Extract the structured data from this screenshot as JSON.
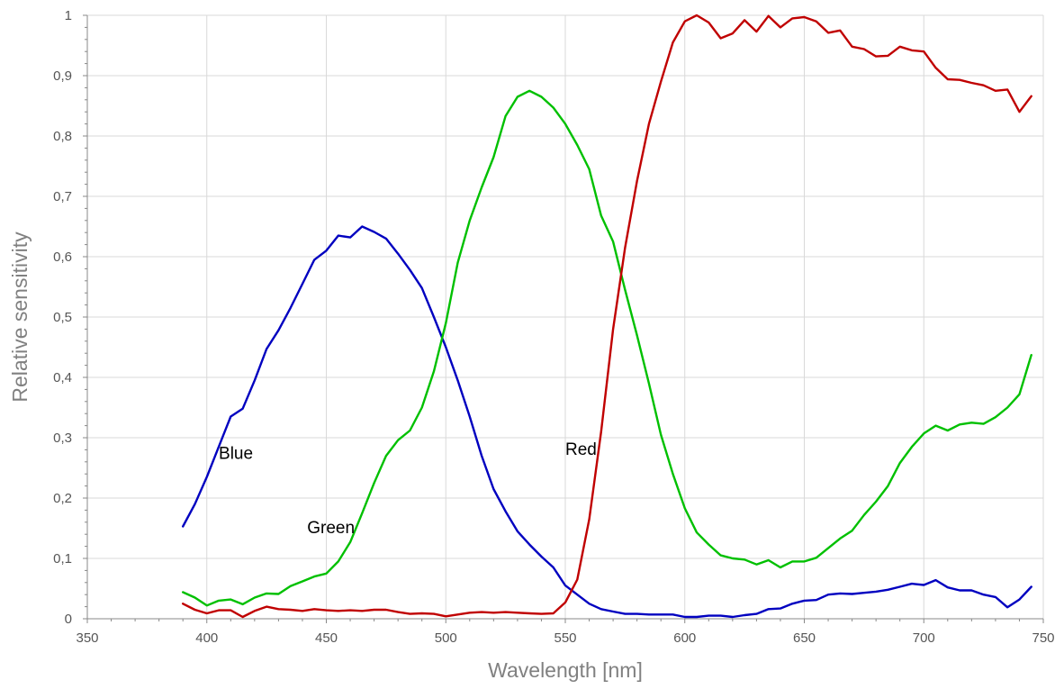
{
  "chart_data": {
    "type": "line",
    "title": "",
    "xlabel": "Wavelength [nm]",
    "ylabel": "Relative sensitivity",
    "xlim": [
      350,
      750
    ],
    "ylim": [
      0,
      1
    ],
    "x_ticks": [
      350,
      400,
      450,
      500,
      550,
      600,
      650,
      700,
      750
    ],
    "x_tick_labels": [
      "350",
      "400",
      "450",
      "500",
      "550",
      "600",
      "650",
      "700",
      "750"
    ],
    "y_ticks": [
      0,
      0.1,
      0.2,
      0.3,
      0.4,
      0.5,
      0.6,
      0.7,
      0.8,
      0.9,
      1
    ],
    "y_tick_labels": [
      "0",
      "0,1",
      "0,2",
      "0,3",
      "0,4",
      "0,5",
      "0,6",
      "0,7",
      "0,8",
      "0,9",
      "1"
    ],
    "grid": true,
    "legend": "none (inline labels)",
    "series": [
      {
        "name": "Blue",
        "color": "#0000c0",
        "label_at": [
          405,
          0.265
        ],
        "points": [
          [
            390,
            0.153
          ],
          [
            395,
            0.19
          ],
          [
            400,
            0.235
          ],
          [
            405,
            0.285
          ],
          [
            410,
            0.335
          ],
          [
            415,
            0.348
          ],
          [
            420,
            0.395
          ],
          [
            425,
            0.447
          ],
          [
            430,
            0.478
          ],
          [
            435,
            0.515
          ],
          [
            440,
            0.555
          ],
          [
            445,
            0.595
          ],
          [
            450,
            0.61
          ],
          [
            455,
            0.635
          ],
          [
            460,
            0.632
          ],
          [
            465,
            0.65
          ],
          [
            470,
            0.641
          ],
          [
            475,
            0.63
          ],
          [
            480,
            0.605
          ],
          [
            485,
            0.578
          ],
          [
            490,
            0.548
          ],
          [
            495,
            0.5
          ],
          [
            500,
            0.45
          ],
          [
            505,
            0.395
          ],
          [
            510,
            0.335
          ],
          [
            515,
            0.27
          ],
          [
            520,
            0.215
          ],
          [
            525,
            0.178
          ],
          [
            530,
            0.145
          ],
          [
            535,
            0.123
          ],
          [
            540,
            0.103
          ],
          [
            545,
            0.085
          ],
          [
            550,
            0.055
          ],
          [
            555,
            0.04
          ],
          [
            560,
            0.025
          ],
          [
            565,
            0.016
          ],
          [
            570,
            0.012
          ],
          [
            575,
            0.008
          ],
          [
            580,
            0.008
          ],
          [
            585,
            0.007
          ],
          [
            590,
            0.007
          ],
          [
            595,
            0.007
          ],
          [
            600,
            0.003
          ],
          [
            605,
            0.003
          ],
          [
            610,
            0.005
          ],
          [
            615,
            0.005
          ],
          [
            620,
            0.003
          ],
          [
            625,
            0.006
          ],
          [
            630,
            0.008
          ],
          [
            635,
            0.016
          ],
          [
            640,
            0.017
          ],
          [
            645,
            0.025
          ],
          [
            650,
            0.03
          ],
          [
            655,
            0.031
          ],
          [
            660,
            0.04
          ],
          [
            665,
            0.042
          ],
          [
            670,
            0.041
          ],
          [
            675,
            0.043
          ],
          [
            680,
            0.045
          ],
          [
            685,
            0.048
          ],
          [
            690,
            0.053
          ],
          [
            695,
            0.058
          ],
          [
            700,
            0.056
          ],
          [
            705,
            0.064
          ],
          [
            710,
            0.052
          ],
          [
            715,
            0.047
          ],
          [
            720,
            0.047
          ],
          [
            725,
            0.04
          ],
          [
            730,
            0.036
          ],
          [
            735,
            0.019
          ],
          [
            740,
            0.032
          ],
          [
            745,
            0.053
          ]
        ]
      },
      {
        "name": "Green",
        "color": "#00c000",
        "label_at": [
          442,
          0.142
        ],
        "points": [
          [
            390,
            0.044
          ],
          [
            395,
            0.035
          ],
          [
            400,
            0.022
          ],
          [
            405,
            0.03
          ],
          [
            410,
            0.032
          ],
          [
            415,
            0.024
          ],
          [
            420,
            0.035
          ],
          [
            425,
            0.042
          ],
          [
            430,
            0.041
          ],
          [
            435,
            0.054
          ],
          [
            440,
            0.062
          ],
          [
            445,
            0.07
          ],
          [
            450,
            0.075
          ],
          [
            455,
            0.095
          ],
          [
            460,
            0.127
          ],
          [
            465,
            0.175
          ],
          [
            470,
            0.225
          ],
          [
            475,
            0.27
          ],
          [
            480,
            0.296
          ],
          [
            485,
            0.312
          ],
          [
            490,
            0.35
          ],
          [
            495,
            0.41
          ],
          [
            500,
            0.49
          ],
          [
            505,
            0.59
          ],
          [
            510,
            0.66
          ],
          [
            515,
            0.715
          ],
          [
            520,
            0.765
          ],
          [
            525,
            0.833
          ],
          [
            530,
            0.865
          ],
          [
            535,
            0.875
          ],
          [
            540,
            0.865
          ],
          [
            545,
            0.847
          ],
          [
            550,
            0.82
          ],
          [
            555,
            0.785
          ],
          [
            560,
            0.745
          ],
          [
            565,
            0.668
          ],
          [
            570,
            0.625
          ],
          [
            575,
            0.545
          ],
          [
            580,
            0.47
          ],
          [
            585,
            0.39
          ],
          [
            590,
            0.305
          ],
          [
            595,
            0.24
          ],
          [
            600,
            0.183
          ],
          [
            605,
            0.143
          ],
          [
            610,
            0.123
          ],
          [
            615,
            0.105
          ],
          [
            620,
            0.1
          ],
          [
            625,
            0.098
          ],
          [
            630,
            0.09
          ],
          [
            635,
            0.097
          ],
          [
            640,
            0.085
          ],
          [
            645,
            0.095
          ],
          [
            650,
            0.095
          ],
          [
            655,
            0.101
          ],
          [
            660,
            0.117
          ],
          [
            665,
            0.133
          ],
          [
            670,
            0.146
          ],
          [
            675,
            0.172
          ],
          [
            680,
            0.194
          ],
          [
            685,
            0.22
          ],
          [
            690,
            0.258
          ],
          [
            695,
            0.285
          ],
          [
            700,
            0.307
          ],
          [
            705,
            0.32
          ],
          [
            710,
            0.312
          ],
          [
            715,
            0.322
          ],
          [
            720,
            0.325
          ],
          [
            725,
            0.323
          ],
          [
            730,
            0.334
          ],
          [
            735,
            0.35
          ],
          [
            740,
            0.372
          ],
          [
            745,
            0.437
          ]
        ]
      },
      {
        "name": "Red",
        "color": "#c00000",
        "label_at": [
          550,
          0.272
        ],
        "points": [
          [
            390,
            0.025
          ],
          [
            395,
            0.015
          ],
          [
            400,
            0.009
          ],
          [
            405,
            0.014
          ],
          [
            410,
            0.014
          ],
          [
            415,
            0.003
          ],
          [
            420,
            0.013
          ],
          [
            425,
            0.02
          ],
          [
            430,
            0.016
          ],
          [
            435,
            0.015
          ],
          [
            440,
            0.013
          ],
          [
            445,
            0.016
          ],
          [
            450,
            0.014
          ],
          [
            455,
            0.013
          ],
          [
            460,
            0.014
          ],
          [
            465,
            0.013
          ],
          [
            470,
            0.015
          ],
          [
            475,
            0.015
          ],
          [
            480,
            0.011
          ],
          [
            485,
            0.008
          ],
          [
            490,
            0.009
          ],
          [
            495,
            0.008
          ],
          [
            500,
            0.004
          ],
          [
            505,
            0.007
          ],
          [
            510,
            0.01
          ],
          [
            515,
            0.011
          ],
          [
            520,
            0.01
          ],
          [
            525,
            0.011
          ],
          [
            530,
            0.01
          ],
          [
            535,
            0.009
          ],
          [
            540,
            0.008
          ],
          [
            545,
            0.009
          ],
          [
            550,
            0.027
          ],
          [
            555,
            0.065
          ],
          [
            560,
            0.165
          ],
          [
            565,
            0.31
          ],
          [
            570,
            0.48
          ],
          [
            575,
            0.615
          ],
          [
            580,
            0.725
          ],
          [
            585,
            0.82
          ],
          [
            590,
            0.89
          ],
          [
            595,
            0.955
          ],
          [
            600,
            0.99
          ],
          [
            605,
            1.0
          ],
          [
            610,
            0.988
          ],
          [
            615,
            0.962
          ],
          [
            620,
            0.97
          ],
          [
            625,
            0.992
          ],
          [
            630,
            0.973
          ],
          [
            635,
            0.999
          ],
          [
            640,
            0.98
          ],
          [
            645,
            0.995
          ],
          [
            650,
            0.997
          ],
          [
            655,
            0.99
          ],
          [
            660,
            0.971
          ],
          [
            665,
            0.975
          ],
          [
            670,
            0.948
          ],
          [
            675,
            0.944
          ],
          [
            680,
            0.932
          ],
          [
            685,
            0.933
          ],
          [
            690,
            0.948
          ],
          [
            695,
            0.942
          ],
          [
            700,
            0.94
          ],
          [
            705,
            0.913
          ],
          [
            710,
            0.894
          ],
          [
            715,
            0.893
          ],
          [
            720,
            0.888
          ],
          [
            725,
            0.884
          ],
          [
            730,
            0.875
          ],
          [
            735,
            0.877
          ],
          [
            740,
            0.84
          ],
          [
            745,
            0.866
          ]
        ]
      }
    ]
  }
}
